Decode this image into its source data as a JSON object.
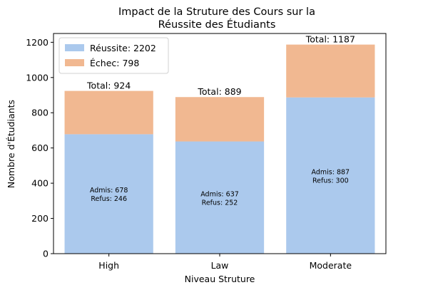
{
  "chart_data": {
    "type": "bar",
    "stacked": true,
    "title_lines": [
      "Impact de la Struture des Cours sur la",
      "Réussite des Étudiants"
    ],
    "xlabel": "Niveau Struture",
    "ylabel": "Nombre d'Étudiants",
    "categories": [
      "High",
      "Law",
      "Moderate"
    ],
    "ylim": [
      0,
      1250
    ],
    "yticks": [
      0,
      200,
      400,
      600,
      800,
      1000,
      1200
    ],
    "series": [
      {
        "name": "Réussite: 2202",
        "values": [
          678,
          637,
          887
        ],
        "color": "#abc9ed"
      },
      {
        "name": "Échec: 798",
        "values": [
          246,
          252,
          300
        ],
        "color": "#f1b891"
      }
    ],
    "total_labels": [
      "Total: 924",
      "Total: 889",
      "Total: 1187"
    ],
    "bar_labels": [
      [
        "Admis: 678",
        "Refus: 246"
      ],
      [
        "Admis: 637",
        "Refus: 252"
      ],
      [
        "Admis: 887",
        "Refus: 300"
      ]
    ],
    "legend_position": "top-left",
    "grid": false
  }
}
